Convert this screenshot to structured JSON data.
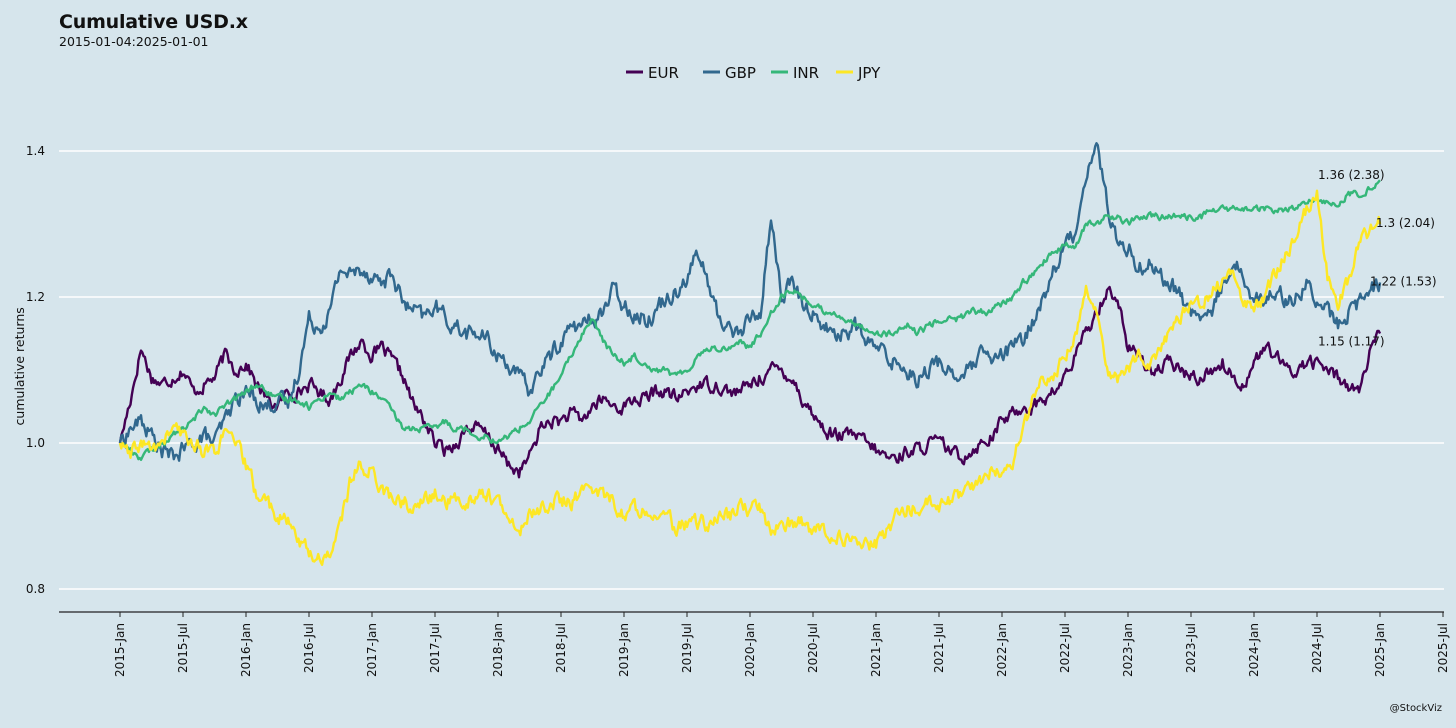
{
  "title": "Cumulative USD.x",
  "subtitle": "2015-01-04:2025-01-01",
  "caption": "@StockViz",
  "colors": {
    "background": "#d6e5ec",
    "gridline": "#ffffff",
    "EUR": "#440154",
    "GBP": "#31688e",
    "INR": "#35b779",
    "JPY": "#fde725"
  },
  "chart_data": {
    "type": "line",
    "title": "Cumulative USD.x",
    "subtitle": "2015-01-04:2025-01-01",
    "xlabel": "",
    "ylabel": "cumulative returns",
    "x_ticks": [
      "2015-Jan",
      "2015-Jul",
      "2016-Jan",
      "2016-Jul",
      "2017-Jan",
      "2017-Jul",
      "2018-Jan",
      "2018-Jul",
      "2019-Jan",
      "2019-Jul",
      "2020-Jan",
      "2020-Jul",
      "2021-Jan",
      "2021-Jul",
      "2022-Jan",
      "2022-Jul",
      "2023-Jan",
      "2023-Jul",
      "2024-Jan",
      "2024-Jul",
      "2025-Jan",
      "2025-Jul"
    ],
    "y_ticks": [
      0.8,
      1.0,
      1.2,
      1.4
    ],
    "y_tick_labels": [
      "0.8",
      "1.0",
      "1.2",
      "1.4"
    ],
    "xlim": [
      "2014-09",
      "2025-10"
    ],
    "ylim": [
      0.77,
      1.47
    ],
    "grid": "horizontal",
    "legend_position": "top",
    "x": [
      "2015-01",
      "2015-02",
      "2015-03",
      "2015-04",
      "2015-05",
      "2015-06",
      "2015-07",
      "2015-08",
      "2015-09",
      "2015-10",
      "2015-11",
      "2015-12",
      "2016-01",
      "2016-02",
      "2016-03",
      "2016-04",
      "2016-05",
      "2016-06",
      "2016-07",
      "2016-08",
      "2016-09",
      "2016-10",
      "2016-11",
      "2016-12",
      "2017-01",
      "2017-02",
      "2017-03",
      "2017-04",
      "2017-05",
      "2017-06",
      "2017-07",
      "2017-08",
      "2017-09",
      "2017-10",
      "2017-11",
      "2017-12",
      "2018-01",
      "2018-02",
      "2018-03",
      "2018-04",
      "2018-05",
      "2018-06",
      "2018-07",
      "2018-08",
      "2018-09",
      "2018-10",
      "2018-11",
      "2018-12",
      "2019-01",
      "2019-02",
      "2019-03",
      "2019-04",
      "2019-05",
      "2019-06",
      "2019-07",
      "2019-08",
      "2019-09",
      "2019-10",
      "2019-11",
      "2019-12",
      "2020-01",
      "2020-02",
      "2020-03",
      "2020-04",
      "2020-05",
      "2020-06",
      "2020-07",
      "2020-08",
      "2020-09",
      "2020-10",
      "2020-11",
      "2020-12",
      "2021-01",
      "2021-02",
      "2021-03",
      "2021-04",
      "2021-05",
      "2021-06",
      "2021-07",
      "2021-08",
      "2021-09",
      "2021-10",
      "2021-11",
      "2021-12",
      "2022-01",
      "2022-02",
      "2022-03",
      "2022-04",
      "2022-05",
      "2022-06",
      "2022-07",
      "2022-08",
      "2022-09",
      "2022-10",
      "2022-11",
      "2022-12",
      "2023-01",
      "2023-02",
      "2023-03",
      "2023-04",
      "2023-05",
      "2023-06",
      "2023-07",
      "2023-08",
      "2023-09",
      "2023-10",
      "2023-11",
      "2023-12",
      "2024-01",
      "2024-02",
      "2024-03",
      "2024-04",
      "2024-05",
      "2024-06",
      "2024-07",
      "2024-08",
      "2024-09",
      "2024-10",
      "2024-11",
      "2024-12",
      "2025-01"
    ],
    "series": [
      {
        "name": "EUR",
        "values": [
          1.0,
          1.06,
          1.13,
          1.09,
          1.08,
          1.09,
          1.1,
          1.07,
          1.08,
          1.09,
          1.12,
          1.1,
          1.11,
          1.08,
          1.06,
          1.05,
          1.07,
          1.07,
          1.08,
          1.07,
          1.06,
          1.09,
          1.12,
          1.14,
          1.12,
          1.13,
          1.11,
          1.09,
          1.05,
          1.03,
          1.0,
          0.99,
          1.0,
          1.02,
          1.02,
          1.01,
          0.99,
          0.97,
          0.96,
          0.98,
          1.02,
          1.03,
          1.03,
          1.04,
          1.03,
          1.05,
          1.06,
          1.05,
          1.05,
          1.06,
          1.06,
          1.07,
          1.07,
          1.06,
          1.07,
          1.08,
          1.08,
          1.08,
          1.07,
          1.07,
          1.08,
          1.09,
          1.1,
          1.1,
          1.09,
          1.06,
          1.04,
          1.02,
          1.01,
          1.01,
          1.01,
          1.0,
          0.99,
          0.98,
          0.98,
          0.99,
          0.99,
          1.0,
          1.0,
          0.99,
          0.98,
          0.99,
          1.0,
          1.01,
          1.03,
          1.04,
          1.05,
          1.05,
          1.06,
          1.07,
          1.09,
          1.12,
          1.15,
          1.18,
          1.21,
          1.2,
          1.13,
          1.12,
          1.1,
          1.1,
          1.11,
          1.1,
          1.09,
          1.09,
          1.1,
          1.11,
          1.09,
          1.08,
          1.11,
          1.13,
          1.12,
          1.1,
          1.1,
          1.11,
          1.11,
          1.1,
          1.09,
          1.08,
          1.07,
          1.12,
          1.15
        ]
      },
      {
        "name": "GBP",
        "values": [
          1.0,
          1.02,
          1.03,
          1.01,
          0.99,
          0.98,
          0.99,
          1.0,
          1.01,
          1.0,
          1.03,
          1.06,
          1.07,
          1.06,
          1.05,
          1.06,
          1.05,
          1.1,
          1.17,
          1.16,
          1.18,
          1.24,
          1.23,
          1.24,
          1.23,
          1.22,
          1.23,
          1.19,
          1.18,
          1.17,
          1.19,
          1.17,
          1.16,
          1.15,
          1.15,
          1.14,
          1.12,
          1.11,
          1.09,
          1.07,
          1.1,
          1.12,
          1.14,
          1.16,
          1.16,
          1.17,
          1.18,
          1.21,
          1.19,
          1.18,
          1.17,
          1.18,
          1.2,
          1.21,
          1.23,
          1.26,
          1.22,
          1.17,
          1.16,
          1.15,
          1.17,
          1.18,
          1.31,
          1.2,
          1.22,
          1.19,
          1.18,
          1.16,
          1.15,
          1.15,
          1.16,
          1.14,
          1.13,
          1.12,
          1.11,
          1.1,
          1.09,
          1.1,
          1.11,
          1.1,
          1.09,
          1.1,
          1.12,
          1.11,
          1.12,
          1.13,
          1.14,
          1.17,
          1.2,
          1.24,
          1.27,
          1.29,
          1.37,
          1.41,
          1.33,
          1.27,
          1.27,
          1.24,
          1.25,
          1.23,
          1.22,
          1.2,
          1.18,
          1.17,
          1.18,
          1.22,
          1.25,
          1.23,
          1.2,
          1.19,
          1.21,
          1.2,
          1.2,
          1.22,
          1.19,
          1.18,
          1.16,
          1.18,
          1.19,
          1.21,
          1.22
        ]
      },
      {
        "name": "INR",
        "values": [
          1.0,
          0.99,
          0.98,
          0.99,
          1.0,
          1.01,
          1.02,
          1.03,
          1.05,
          1.04,
          1.05,
          1.06,
          1.07,
          1.08,
          1.07,
          1.06,
          1.06,
          1.06,
          1.05,
          1.06,
          1.07,
          1.06,
          1.07,
          1.08,
          1.07,
          1.06,
          1.04,
          1.02,
          1.02,
          1.02,
          1.02,
          1.03,
          1.02,
          1.02,
          1.01,
          1.01,
          1.0,
          1.01,
          1.02,
          1.03,
          1.05,
          1.07,
          1.09,
          1.12,
          1.15,
          1.17,
          1.14,
          1.12,
          1.11,
          1.12,
          1.11,
          1.1,
          1.1,
          1.09,
          1.1,
          1.12,
          1.13,
          1.13,
          1.13,
          1.14,
          1.13,
          1.15,
          1.18,
          1.2,
          1.21,
          1.2,
          1.19,
          1.18,
          1.18,
          1.17,
          1.16,
          1.16,
          1.15,
          1.15,
          1.15,
          1.16,
          1.15,
          1.16,
          1.17,
          1.17,
          1.17,
          1.18,
          1.18,
          1.18,
          1.19,
          1.2,
          1.22,
          1.23,
          1.25,
          1.26,
          1.27,
          1.27,
          1.3,
          1.3,
          1.31,
          1.31,
          1.3,
          1.31,
          1.31,
          1.31,
          1.31,
          1.31,
          1.31,
          1.31,
          1.32,
          1.32,
          1.32,
          1.32,
          1.32,
          1.32,
          1.32,
          1.32,
          1.32,
          1.33,
          1.33,
          1.33,
          1.33,
          1.34,
          1.34,
          1.35,
          1.36
        ]
      },
      {
        "name": "JPY",
        "values": [
          1.0,
          0.98,
          1.0,
          0.99,
          1.0,
          1.02,
          1.01,
          1.0,
          0.99,
          0.99,
          1.01,
          1.0,
          0.97,
          0.93,
          0.92,
          0.9,
          0.89,
          0.87,
          0.85,
          0.84,
          0.85,
          0.89,
          0.95,
          0.97,
          0.96,
          0.94,
          0.92,
          0.92,
          0.91,
          0.92,
          0.93,
          0.92,
          0.92,
          0.92,
          0.93,
          0.93,
          0.92,
          0.89,
          0.88,
          0.9,
          0.91,
          0.92,
          0.92,
          0.92,
          0.93,
          0.94,
          0.93,
          0.92,
          0.9,
          0.91,
          0.91,
          0.91,
          0.9,
          0.88,
          0.89,
          0.89,
          0.89,
          0.9,
          0.9,
          0.91,
          0.91,
          0.91,
          0.88,
          0.89,
          0.89,
          0.89,
          0.88,
          0.88,
          0.87,
          0.87,
          0.86,
          0.86,
          0.86,
          0.88,
          0.9,
          0.91,
          0.91,
          0.92,
          0.91,
          0.92,
          0.93,
          0.94,
          0.95,
          0.96,
          0.96,
          0.97,
          1.02,
          1.06,
          1.09,
          1.1,
          1.12,
          1.15,
          1.21,
          1.19,
          1.1,
          1.09,
          1.1,
          1.12,
          1.11,
          1.13,
          1.15,
          1.17,
          1.19,
          1.19,
          1.21,
          1.22,
          1.23,
          1.2,
          1.18,
          1.2,
          1.23,
          1.26,
          1.28,
          1.32,
          1.34,
          1.23,
          1.19,
          1.22,
          1.27,
          1.29,
          1.3
        ]
      }
    ],
    "end_labels": [
      {
        "series": "INR",
        "value": 1.36,
        "text": "1.36 (2.38)"
      },
      {
        "series": "JPY",
        "value": 1.3,
        "text": "1.3 (2.04)"
      },
      {
        "series": "GBP",
        "value": 1.22,
        "text": "1.22 (1.53)"
      },
      {
        "series": "EUR",
        "value": 1.15,
        "text": "1.15 (1.17)"
      }
    ]
  }
}
